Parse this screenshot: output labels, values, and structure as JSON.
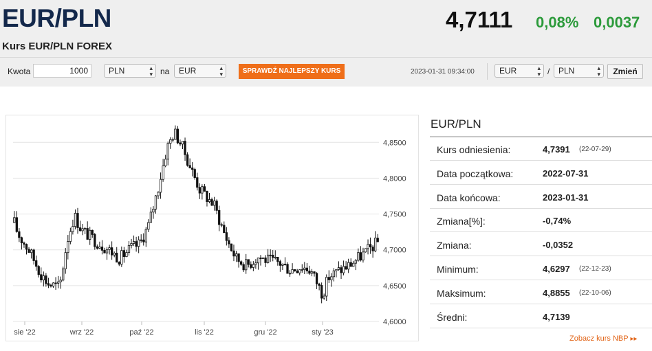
{
  "header": {
    "pair": "EUR/PLN",
    "subtitle": "Kurs EUR/PLN FOREX",
    "rate": "4,7111",
    "change_pct": "0,08%",
    "change_abs": "0,0037"
  },
  "converter": {
    "amount_label": "Kwota",
    "amount_value": "1000",
    "from_currency": "PLN",
    "to_label": "na",
    "to_currency": "EUR",
    "best_rate_button": "SPRAWDŹ NAJLEPSZY KURS",
    "datetime": "2023-01-31 09:34:00",
    "pair_base": "EUR",
    "pair_separator": "/",
    "pair_quote": "PLN",
    "change_button": "Zmień"
  },
  "colors": {
    "accent_orange": "#ef6e19",
    "positive_green": "#2b9a3a",
    "title_navy": "#13284b"
  },
  "icons": {
    "select_arrow": "up-down-chevron-icon",
    "link_arrow": "double-right-arrow-icon"
  },
  "chart_data": {
    "type": "candlestick",
    "x_ticks": [
      "sie '22",
      "wrz '22",
      "paź '22",
      "lis '22",
      "gru '22",
      "sty '23"
    ],
    "y_ticks": [
      "4,6000",
      "4,6500",
      "4,7000",
      "4,7500",
      "4,8000",
      "4,8500"
    ],
    "ylim": [
      4.6,
      4.88
    ],
    "grid": true,
    "keypoints": [
      [
        0,
        4.738
      ],
      [
        0.01,
        4.722
      ],
      [
        0.04,
        4.7
      ],
      [
        0.075,
        4.665
      ],
      [
        0.095,
        4.652
      ],
      [
        0.125,
        4.648
      ],
      [
        0.145,
        4.712
      ],
      [
        0.165,
        4.748
      ],
      [
        0.185,
        4.728
      ],
      [
        0.225,
        4.712
      ],
      [
        0.26,
        4.7
      ],
      [
        0.29,
        4.688
      ],
      [
        0.32,
        4.702
      ],
      [
        0.345,
        4.708
      ],
      [
        0.37,
        4.735
      ],
      [
        0.395,
        4.785
      ],
      [
        0.42,
        4.842
      ],
      [
        0.44,
        4.865
      ],
      [
        0.46,
        4.847
      ],
      [
        0.485,
        4.815
      ],
      [
        0.51,
        4.785
      ],
      [
        0.55,
        4.762
      ],
      [
        0.58,
        4.72
      ],
      [
        0.61,
        4.688
      ],
      [
        0.64,
        4.678
      ],
      [
        0.67,
        4.69
      ],
      [
        0.7,
        4.685
      ],
      [
        0.73,
        4.682
      ],
      [
        0.76,
        4.672
      ],
      [
        0.79,
        4.677
      ],
      [
        0.815,
        4.672
      ],
      [
        0.835,
        4.652
      ],
      [
        0.848,
        4.638
      ],
      [
        0.865,
        4.662
      ],
      [
        0.89,
        4.67
      ],
      [
        0.92,
        4.678
      ],
      [
        0.95,
        4.69
      ],
      [
        0.975,
        4.7
      ],
      [
        1.0,
        4.711
      ]
    ]
  },
  "stats": {
    "title": "EUR/PLN",
    "rows": [
      {
        "label": "Kurs odniesienia:",
        "value": "4,7391",
        "date": "(22-07-29)"
      },
      {
        "label": "Data początkowa:",
        "value": "2022-07-31",
        "date": ""
      },
      {
        "label": "Data końcowa:",
        "value": "2023-01-31",
        "date": ""
      },
      {
        "label": "Zmiana[%]:",
        "value": "-0,74%",
        "date": ""
      },
      {
        "label": "Zmiana:",
        "value": "-0,0352",
        "date": ""
      },
      {
        "label": "Minimum:",
        "value": "4,6297",
        "date": "(22-12-23)"
      },
      {
        "label": "Maksimum:",
        "value": "4,8855",
        "date": "(22-10-06)"
      },
      {
        "label": "Średni:",
        "value": "4,7139",
        "date": ""
      }
    ],
    "nbp_link": "Zobacz kurs NBP"
  }
}
